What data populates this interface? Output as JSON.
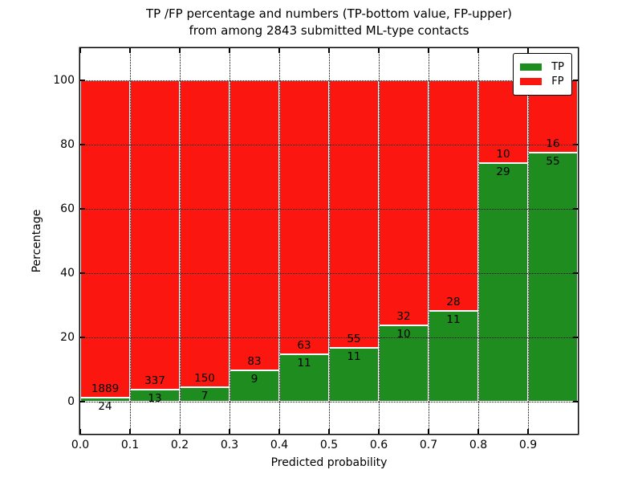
{
  "figure": {
    "title_line1": "TP /FP percentage and numbers (TP-bottom value, FP-upper)",
    "title_line2": "from among 2843 submitted ML-type contacts"
  },
  "chart_data": {
    "type": "bar",
    "subtype": "stacked-percentage",
    "title": "TP /FP percentage and numbers (TP-bottom value, FP-upper)\nfrom among 2843 submitted ML-type contacts",
    "xlabel": "Predicted probability",
    "ylabel": "Percentage",
    "total_contacts": 2843,
    "x_bin_starts": [
      0.0,
      0.1,
      0.2,
      0.3,
      0.4,
      0.5,
      0.6,
      0.7,
      0.8,
      0.9
    ],
    "bar_width": 0.1,
    "series": [
      {
        "name": "TP",
        "color": "#1e8c1e",
        "counts": [
          24,
          13,
          7,
          9,
          11,
          11,
          10,
          11,
          29,
          55
        ]
      },
      {
        "name": "FP",
        "color": "#fb1710",
        "counts": [
          1889,
          337,
          150,
          83,
          63,
          55,
          32,
          28,
          10,
          16
        ]
      }
    ],
    "tp_percent": [
      1.25,
      3.71,
      4.46,
      9.78,
      14.86,
      16.67,
      23.81,
      28.21,
      74.36,
      77.46
    ],
    "xticks": [
      "0.0",
      "0.1",
      "0.2",
      "0.3",
      "0.4",
      "0.5",
      "0.6",
      "0.7",
      "0.8",
      "0.9"
    ],
    "ytick_values": [
      0,
      20,
      40,
      60,
      80,
      100
    ],
    "ytick_labels": [
      "0",
      "20",
      "40",
      "60",
      "80",
      "100"
    ],
    "xlim": [
      0,
      1
    ],
    "ylim": [
      -10,
      110
    ],
    "grid": true,
    "legend": {
      "position": "upper right",
      "entries": [
        {
          "label": "TP",
          "color": "#1e8c1e"
        },
        {
          "label": "FP",
          "color": "#fb1710"
        }
      ]
    }
  }
}
